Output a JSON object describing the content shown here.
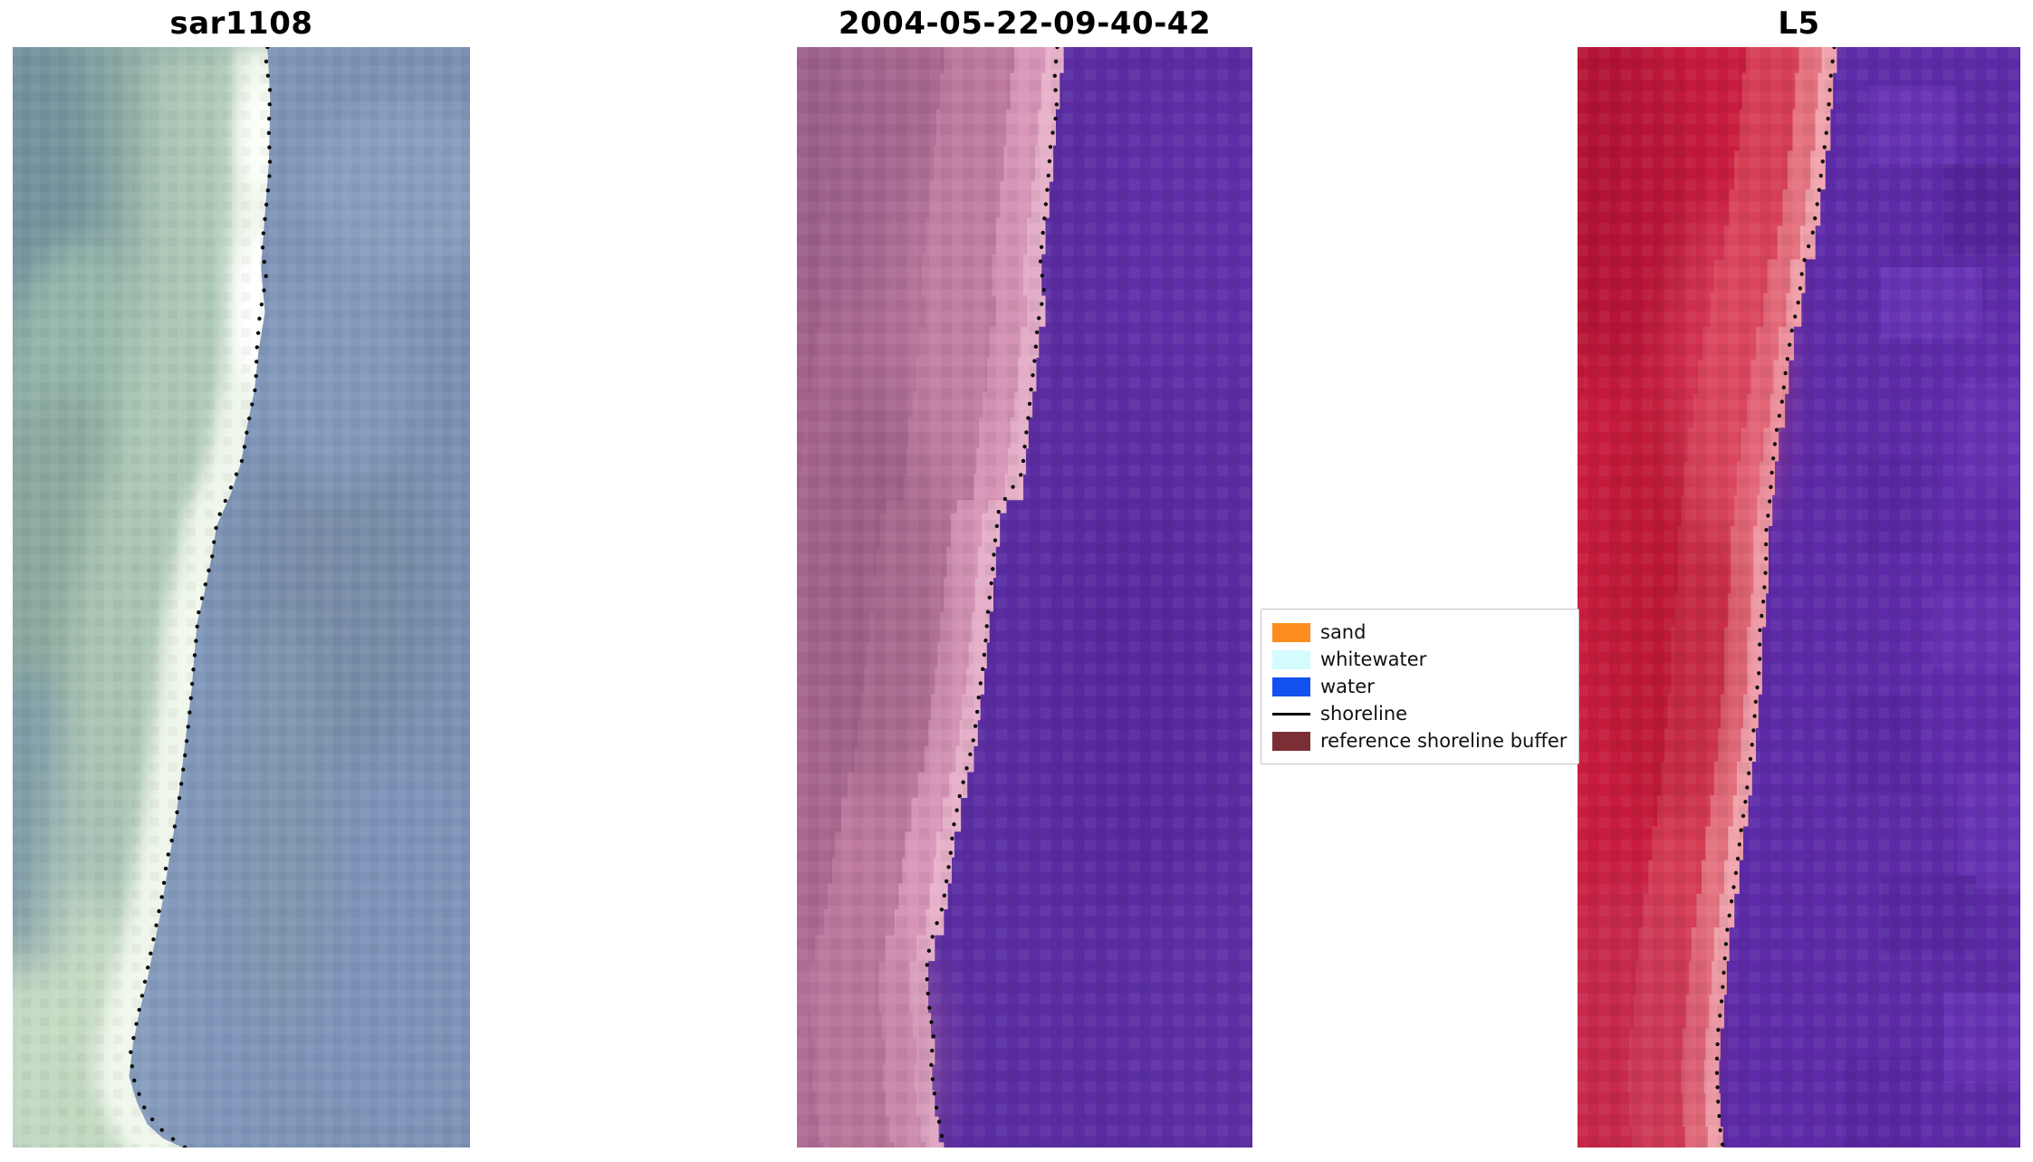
{
  "figure": {
    "background": "#ffffff"
  },
  "chart_data": {
    "type": "heatmap",
    "description": "Three-panel shoreline-mapping figure: a SAR image, a classified satellite image with reference shoreline buffer, and a Landsat 5 false-color image. Black dotted points mark the detected shoreline in each panel.",
    "legend_position": "center right, between second and third panels",
    "panels": [
      {
        "title": "sar1108",
        "kind": "sar-rgb-image",
        "left_side": "beach / land (teal-green with bright whitewater band)",
        "right_side": "water (blue-gray)",
        "shoreline": [
          [
            195,
            0
          ],
          [
            194,
            12
          ],
          [
            197,
            34
          ],
          [
            196,
            64
          ],
          [
            197,
            94
          ],
          [
            194,
            124
          ],
          [
            191,
            152
          ],
          [
            194,
            178
          ],
          [
            189,
            208
          ],
          [
            187,
            232
          ],
          [
            186,
            262
          ],
          [
            180,
            292
          ],
          [
            176,
            318
          ],
          [
            168,
            338
          ],
          [
            158,
            362
          ],
          [
            155,
            374
          ],
          [
            153,
            392
          ],
          [
            148,
            413
          ],
          [
            142,
            438
          ],
          [
            140,
            462
          ],
          [
            138,
            484
          ],
          [
            136,
            508
          ],
          [
            133,
            538
          ],
          [
            130,
            562
          ],
          [
            127,
            584
          ],
          [
            123,
            608
          ],
          [
            118,
            628
          ],
          [
            115,
            652
          ],
          [
            110,
            678
          ],
          [
            105,
            703
          ],
          [
            100,
            728
          ],
          [
            95,
            753
          ],
          [
            90,
            778
          ],
          [
            93,
            798
          ],
          [
            100,
            818
          ],
          [
            110,
            833
          ],
          [
            122,
            843
          ],
          [
            132,
            850
          ]
        ]
      },
      {
        "title": "2004-05-22-09-40-42",
        "kind": "classified-image",
        "left_side": "reference shoreline buffer over sand (mauve/pink)",
        "right_side": "water (purple)",
        "shoreline": [
          [
            200,
            0
          ],
          [
            198,
            24
          ],
          [
            200,
            49
          ],
          [
            195,
            74
          ],
          [
            193,
            104
          ],
          [
            190,
            134
          ],
          [
            187,
            164
          ],
          [
            190,
            189
          ],
          [
            185,
            214
          ],
          [
            183,
            239
          ],
          [
            180,
            264
          ],
          [
            178,
            284
          ],
          [
            175,
            309
          ],
          [
            173,
            329
          ],
          [
            160,
            349
          ],
          [
            155,
            359
          ],
          [
            152,
            384
          ],
          [
            150,
            409
          ],
          [
            147,
            434
          ],
          [
            145,
            459
          ],
          [
            143,
            479
          ],
          [
            140,
            499
          ],
          [
            138,
            519
          ],
          [
            135,
            539
          ],
          [
            130,
            559
          ],
          [
            125,
            579
          ],
          [
            120,
            604
          ],
          [
            118,
            624
          ],
          [
            115,
            644
          ],
          [
            112,
            664
          ],
          [
            105,
            684
          ],
          [
            100,
            704
          ],
          [
            100,
            724
          ],
          [
            102,
            744
          ],
          [
            105,
            764
          ],
          [
            103,
            784
          ],
          [
            105,
            804
          ],
          [
            108,
            824
          ],
          [
            112,
            844
          ],
          [
            115,
            850
          ]
        ]
      },
      {
        "title": "L5",
        "kind": "false-color-image",
        "left_side": "land (crimson red)",
        "right_side": "water (purple, blocky pixels)",
        "shoreline": [
          [
            203,
            0
          ],
          [
            200,
            24
          ],
          [
            198,
            56
          ],
          [
            194,
            87
          ],
          [
            190,
            118
          ],
          [
            186,
            143
          ],
          [
            178,
            169
          ],
          [
            175,
            195
          ],
          [
            169,
            221
          ],
          [
            165,
            247
          ],
          [
            162,
            272
          ],
          [
            157,
            298
          ],
          [
            154,
            324
          ],
          [
            152,
            350
          ],
          [
            149,
            375
          ],
          [
            149,
            401
          ],
          [
            147,
            427
          ],
          [
            144,
            452
          ],
          [
            144,
            478
          ],
          [
            141,
            504
          ],
          [
            139,
            530
          ],
          [
            136,
            556
          ],
          [
            133,
            581
          ],
          [
            129,
            607
          ],
          [
            126,
            633
          ],
          [
            122,
            658
          ],
          [
            118,
            684
          ],
          [
            116,
            710
          ],
          [
            114,
            736
          ],
          [
            111,
            761
          ],
          [
            110,
            787
          ],
          [
            111,
            813
          ],
          [
            113,
            838
          ],
          [
            115,
            850
          ]
        ]
      }
    ],
    "legend": [
      {
        "label": "sand",
        "color": "#ff8c1e",
        "marker": "patch"
      },
      {
        "label": "whitewater",
        "color": "#d4fcff",
        "marker": "patch"
      },
      {
        "label": "water",
        "color": "#1352f1",
        "marker": "patch"
      },
      {
        "label": "shoreline",
        "color": "#000000",
        "marker": "line"
      },
      {
        "label": "reference shoreline buffer",
        "color": "#7b2e35",
        "marker": "patch"
      }
    ]
  }
}
